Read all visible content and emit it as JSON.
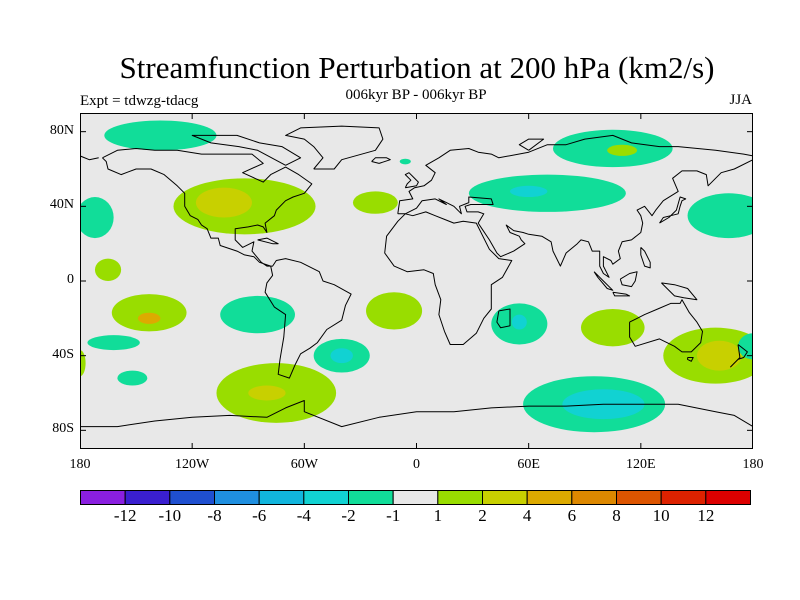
{
  "title": "Streamfunction Perturbation at 200 hPa (km2/s)",
  "subtitle": "006kyr BP - 006kyr BP",
  "experiment": "Expt = tdwzg-tdacg",
  "season": "JJA",
  "colors": {
    "background": "#e8e8e8",
    "coast": "#000000"
  },
  "y_ticks": [
    {
      "label": "80N",
      "lat": 80
    },
    {
      "label": "40N",
      "lat": 40
    },
    {
      "label": "0",
      "lat": 0
    },
    {
      "label": "40S",
      "lat": -40
    },
    {
      "label": "80S",
      "lat": -80
    }
  ],
  "x_ticks": [
    {
      "label": "180",
      "lon": -180
    },
    {
      "label": "120W",
      "lon": -120
    },
    {
      "label": "60W",
      "lon": -60
    },
    {
      "label": "0",
      "lon": 0
    },
    {
      "label": "60E",
      "lon": 60
    },
    {
      "label": "120E",
      "lon": 120
    },
    {
      "label": "180",
      "lon": 180
    }
  ],
  "colorbar": {
    "colors": [
      "#8a1fe0",
      "#3a1fd0",
      "#1f4fd0",
      "#1f8fe0",
      "#11b5dd",
      "#11d2d2",
      "#11dd99",
      "#e8e8e8",
      "#99dd00",
      "#c8d000",
      "#ddaa00",
      "#dd8800",
      "#dd5500",
      "#dd2200",
      "#dd0000"
    ],
    "labels": [
      "-12",
      "-10",
      "-8",
      "-6",
      "-4",
      "-2",
      "-1",
      "1",
      "2",
      "4",
      "6",
      "8",
      "10",
      "12"
    ]
  },
  "anomalies": [
    {
      "lon": -137,
      "lat": 78,
      "rx": 30,
      "ry": 8,
      "color": "#11dd99"
    },
    {
      "lon": -92,
      "lat": 40,
      "rx": 38,
      "ry": 15,
      "color": "#99dd00"
    },
    {
      "lon": -103,
      "lat": 42,
      "rx": 15,
      "ry": 8,
      "color": "#c8d000"
    },
    {
      "lon": -172,
      "lat": 34,
      "rx": 10,
      "ry": 11,
      "color": "#11dd99"
    },
    {
      "lon": -22,
      "lat": 42,
      "rx": 12,
      "ry": 6,
      "color": "#99dd00"
    },
    {
      "lon": -6,
      "lat": 64,
      "rx": 3,
      "ry": 1.5,
      "color": "#11dd99"
    },
    {
      "lon": 105,
      "lat": 71,
      "rx": 32,
      "ry": 10,
      "color": "#11dd99"
    },
    {
      "lon": 110,
      "lat": 70,
      "rx": 8,
      "ry": 3,
      "color": "#99dd00"
    },
    {
      "lon": 70,
      "lat": 47,
      "rx": 42,
      "ry": 10,
      "color": "#11dd99"
    },
    {
      "lon": 60,
      "lat": 48,
      "rx": 10,
      "ry": 3,
      "color": "#11d2d2"
    },
    {
      "lon": 167,
      "lat": 35,
      "rx": 22,
      "ry": 12,
      "color": "#11dd99"
    },
    {
      "lon": -165,
      "lat": 6,
      "rx": 7,
      "ry": 6,
      "color": "#99dd00"
    },
    {
      "lon": -143,
      "lat": -17,
      "rx": 20,
      "ry": 10,
      "color": "#99dd00"
    },
    {
      "lon": -143,
      "lat": -20,
      "rx": 6,
      "ry": 3,
      "color": "#ddaa00"
    },
    {
      "lon": -85,
      "lat": -18,
      "rx": 20,
      "ry": 10,
      "color": "#11dd99"
    },
    {
      "lon": -12,
      "lat": -16,
      "rx": 15,
      "ry": 10,
      "color": "#99dd00"
    },
    {
      "lon": -162,
      "lat": -33,
      "rx": 14,
      "ry": 4,
      "color": "#11dd99"
    },
    {
      "lon": -152,
      "lat": -52,
      "rx": 8,
      "ry": 4,
      "color": "#11dd99"
    },
    {
      "lon": -40,
      "lat": -40,
      "rx": 15,
      "ry": 9,
      "color": "#11dd99"
    },
    {
      "lon": -40,
      "lat": -40,
      "rx": 6,
      "ry": 4,
      "color": "#11d2d2"
    },
    {
      "lon": 55,
      "lat": -23,
      "rx": 15,
      "ry": 11,
      "color": "#11dd99"
    },
    {
      "lon": 55,
      "lat": -22,
      "rx": 4,
      "ry": 4,
      "color": "#11d2d2"
    },
    {
      "lon": 105,
      "lat": -25,
      "rx": 17,
      "ry": 10,
      "color": "#99dd00"
    },
    {
      "lon": -75,
      "lat": -60,
      "rx": 32,
      "ry": 16,
      "color": "#99dd00"
    },
    {
      "lon": -80,
      "lat": -60,
      "rx": 10,
      "ry": 4,
      "color": "#c8d000"
    },
    {
      "lon": -180,
      "lat": -44,
      "rx": 3,
      "ry": 7,
      "color": "#99dd00"
    },
    {
      "lon": 160,
      "lat": -40,
      "rx": 28,
      "ry": 15,
      "color": "#99dd00"
    },
    {
      "lon": 162,
      "lat": -40,
      "rx": 12,
      "ry": 8,
      "color": "#c8d000"
    },
    {
      "lon": 180,
      "lat": -35,
      "rx": 8,
      "ry": 7,
      "color": "#11dd99"
    },
    {
      "lon": 95,
      "lat": -66,
      "rx": 38,
      "ry": 15,
      "color": "#11dd99"
    },
    {
      "lon": 100,
      "lat": -66,
      "rx": 22,
      "ry": 8,
      "color": "#11d2d2"
    }
  ],
  "coastlines": [
    [
      [
        -168,
        66
      ],
      [
        -160,
        70
      ],
      [
        -150,
        71
      ],
      [
        -140,
        70
      ],
      [
        -128,
        70
      ],
      [
        -115,
        68
      ],
      [
        -100,
        68
      ],
      [
        -88,
        68
      ],
      [
        -82,
        63
      ],
      [
        -93,
        58
      ],
      [
        -82,
        53
      ],
      [
        -78,
        57
      ],
      [
        -70,
        61
      ],
      [
        -63,
        57
      ],
      [
        -56,
        52
      ],
      [
        -60,
        47
      ],
      [
        -66,
        45
      ],
      [
        -70,
        43
      ],
      [
        -75,
        38
      ],
      [
        -76,
        35
      ],
      [
        -81,
        31
      ],
      [
        -80,
        26
      ],
      [
        -82,
        29
      ],
      [
        -85,
        30
      ],
      [
        -90,
        29
      ],
      [
        -97,
        28
      ],
      [
        -97,
        22
      ],
      [
        -93,
        18
      ],
      [
        -87,
        21
      ],
      [
        -88,
        16
      ],
      [
        -83,
        10
      ],
      [
        -80,
        8
      ],
      [
        -77,
        8
      ],
      [
        -75,
        11
      ],
      [
        -70,
        12
      ],
      [
        -62,
        10
      ],
      [
        -52,
        5
      ],
      [
        -50,
        0
      ],
      [
        -44,
        -2
      ],
      [
        -35,
        -7
      ],
      [
        -38,
        -13
      ],
      [
        -40,
        -21
      ],
      [
        -48,
        -26
      ],
      [
        -53,
        -33
      ],
      [
        -57,
        -36
      ],
      [
        -62,
        -39
      ],
      [
        -65,
        -45
      ],
      [
        -68,
        -52
      ],
      [
        -74,
        -50
      ],
      [
        -73,
        -42
      ],
      [
        -71,
        -30
      ],
      [
        -70,
        -18
      ],
      [
        -76,
        -14
      ],
      [
        -81,
        -6
      ],
      [
        -80,
        -1
      ],
      [
        -77,
        3
      ],
      [
        -78,
        8
      ],
      [
        -84,
        10
      ],
      [
        -87,
        13
      ],
      [
        -92,
        14
      ],
      [
        -96,
        16
      ],
      [
        -105,
        19
      ],
      [
        -106,
        23
      ],
      [
        -110,
        23
      ],
      [
        -112,
        28
      ],
      [
        -115,
        30
      ],
      [
        -117,
        33
      ],
      [
        -121,
        35
      ],
      [
        -124,
        40
      ],
      [
        -124,
        47
      ],
      [
        -128,
        51
      ],
      [
        -135,
        57
      ],
      [
        -142,
        60
      ],
      [
        -150,
        60
      ],
      [
        -158,
        57
      ],
      [
        -165,
        60
      ],
      [
        -166,
        64
      ],
      [
        -168,
        66
      ]
    ],
    [
      [
        -70,
        62
      ],
      [
        -62,
        66
      ],
      [
        -72,
        72
      ],
      [
        -84,
        74
      ],
      [
        -96,
        78
      ],
      [
        -120,
        78
      ],
      [
        -110,
        74
      ],
      [
        -95,
        72
      ],
      [
        -85,
        70
      ],
      [
        -70,
        62
      ]
    ],
    [
      [
        -55,
        60
      ],
      [
        -44,
        60
      ],
      [
        -40,
        65
      ],
      [
        -22,
        70
      ],
      [
        -18,
        76
      ],
      [
        -20,
        82
      ],
      [
        -40,
        83
      ],
      [
        -62,
        82
      ],
      [
        -70,
        78
      ],
      [
        -60,
        76
      ],
      [
        -55,
        72
      ],
      [
        -50,
        66
      ],
      [
        -55,
        60
      ]
    ],
    [
      [
        -24,
        64
      ],
      [
        -22,
        66
      ],
      [
        -16,
        66
      ],
      [
        -14,
        65
      ],
      [
        -20,
        63
      ],
      [
        -24,
        64
      ]
    ],
    [
      [
        -10,
        36
      ],
      [
        -9,
        43
      ],
      [
        -2,
        44
      ],
      [
        -4,
        48
      ],
      [
        -1,
        50
      ],
      [
        4,
        51
      ],
      [
        8,
        54
      ],
      [
        10,
        58
      ],
      [
        5,
        62
      ],
      [
        12,
        66
      ],
      [
        18,
        70
      ],
      [
        28,
        71
      ],
      [
        33,
        69
      ],
      [
        40,
        68
      ],
      [
        44,
        66
      ],
      [
        60,
        69
      ],
      [
        70,
        73
      ],
      [
        80,
        73
      ],
      [
        90,
        76
      ],
      [
        105,
        78
      ],
      [
        115,
        74
      ],
      [
        130,
        72
      ],
      [
        140,
        72
      ],
      [
        160,
        70
      ],
      [
        175,
        68
      ],
      [
        180,
        67
      ]
    ],
    [
      [
        -180,
        67
      ],
      [
        -175,
        65
      ],
      [
        -170,
        66
      ]
    ],
    [
      [
        180,
        65
      ],
      [
        170,
        60
      ],
      [
        163,
        58
      ],
      [
        156,
        51
      ],
      [
        155,
        57
      ],
      [
        150,
        59
      ],
      [
        142,
        59
      ],
      [
        137,
        55
      ],
      [
        140,
        48
      ],
      [
        132,
        43
      ],
      [
        128,
        38
      ],
      [
        126,
        35
      ],
      [
        122,
        40
      ],
      [
        118,
        38
      ],
      [
        120,
        35
      ],
      [
        121,
        31
      ],
      [
        120,
        26
      ],
      [
        115,
        22
      ],
      [
        110,
        21
      ],
      [
        108,
        16
      ],
      [
        109,
        12
      ],
      [
        105,
        9
      ],
      [
        104,
        11
      ],
      [
        100,
        13
      ],
      [
        100,
        8
      ],
      [
        103,
        2
      ],
      [
        100,
        4
      ],
      [
        98,
        8
      ],
      [
        98,
        16
      ],
      [
        94,
        16
      ],
      [
        92,
        21
      ],
      [
        88,
        22
      ],
      [
        86,
        20
      ],
      [
        80,
        15
      ],
      [
        77,
        8
      ],
      [
        73,
        16
      ],
      [
        72,
        21
      ],
      [
        67,
        24
      ],
      [
        60,
        25
      ],
      [
        57,
        26
      ],
      [
        52,
        27
      ],
      [
        48,
        30
      ],
      [
        50,
        26
      ],
      [
        55,
        24
      ],
      [
        56,
        22
      ],
      [
        58,
        20
      ],
      [
        52,
        16
      ],
      [
        45,
        13
      ],
      [
        43,
        15
      ],
      [
        39,
        22
      ],
      [
        35,
        28
      ],
      [
        33,
        31
      ],
      [
        36,
        36
      ],
      [
        33,
        37
      ],
      [
        27,
        37
      ],
      [
        26,
        40
      ],
      [
        29,
        41
      ],
      [
        41,
        41
      ],
      [
        40,
        44
      ],
      [
        28,
        45
      ],
      [
        28,
        42
      ],
      [
        23,
        40
      ],
      [
        24,
        36
      ],
      [
        20,
        40
      ],
      [
        16,
        42
      ],
      [
        12,
        44
      ],
      [
        16,
        41
      ],
      [
        10,
        44
      ],
      [
        3,
        43
      ],
      [
        0,
        39
      ],
      [
        -6,
        36
      ],
      [
        -10,
        36
      ]
    ],
    [
      [
        -6,
        36
      ],
      [
        -10,
        32
      ],
      [
        -16,
        24
      ],
      [
        -17,
        15
      ],
      [
        -12,
        8
      ],
      [
        -5,
        5
      ],
      [
        4,
        6
      ],
      [
        9,
        4
      ],
      [
        10,
        -2
      ],
      [
        13,
        -10
      ],
      [
        12,
        -18
      ],
      [
        15,
        -27
      ],
      [
        18,
        -34
      ],
      [
        25,
        -34
      ],
      [
        32,
        -28
      ],
      [
        36,
        -20
      ],
      [
        40,
        -15
      ],
      [
        40,
        -8
      ],
      [
        40,
        -2
      ],
      [
        46,
        2
      ],
      [
        51,
        11
      ],
      [
        44,
        12
      ],
      [
        39,
        17
      ],
      [
        35,
        25
      ],
      [
        32,
        31
      ],
      [
        25,
        32
      ],
      [
        20,
        31
      ],
      [
        15,
        33
      ],
      [
        10,
        35
      ],
      [
        5,
        37
      ],
      [
        -2,
        35
      ],
      [
        -6,
        36
      ]
    ],
    [
      [
        44,
        -16
      ],
      [
        50,
        -15
      ],
      [
        50,
        -24
      ],
      [
        45,
        -25
      ],
      [
        43,
        -22
      ],
      [
        44,
        -16
      ]
    ],
    [
      [
        114,
        -22
      ],
      [
        122,
        -18
      ],
      [
        129,
        -15
      ],
      [
        136,
        -12
      ],
      [
        141,
        -12
      ],
      [
        142,
        -10
      ],
      [
        146,
        -17
      ],
      [
        150,
        -22
      ],
      [
        153,
        -27
      ],
      [
        152,
        -33
      ],
      [
        147,
        -38
      ],
      [
        142,
        -38
      ],
      [
        138,
        -35
      ],
      [
        130,
        -31
      ],
      [
        117,
        -35
      ],
      [
        114,
        -30
      ],
      [
        114,
        -22
      ]
    ],
    [
      [
        145,
        -41
      ],
      [
        148,
        -41
      ],
      [
        147,
        -43
      ],
      [
        145,
        -42
      ],
      [
        145,
        -41
      ]
    ],
    [
      [
        172,
        -34
      ],
      [
        177,
        -38
      ],
      [
        175,
        -41
      ],
      [
        172,
        -42
      ],
      [
        168,
        -46
      ],
      [
        170,
        -44
      ],
      [
        173,
        -41
      ],
      [
        172,
        -34
      ]
    ],
    [
      [
        95,
        5
      ],
      [
        100,
        0
      ],
      [
        105,
        -5
      ],
      [
        102,
        -4
      ],
      [
        97,
        2
      ],
      [
        95,
        5
      ]
    ],
    [
      [
        105,
        -6
      ],
      [
        112,
        -7
      ],
      [
        114,
        -8
      ],
      [
        106,
        -8
      ],
      [
        105,
        -6
      ]
    ],
    [
      [
        109,
        1
      ],
      [
        114,
        4
      ],
      [
        118,
        5
      ],
      [
        117,
        0
      ],
      [
        115,
        -3
      ],
      [
        110,
        -2
      ],
      [
        109,
        1
      ]
    ],
    [
      [
        131,
        -1
      ],
      [
        138,
        -2
      ],
      [
        145,
        -4
      ],
      [
        150,
        -10
      ],
      [
        143,
        -9
      ],
      [
        138,
        -8
      ],
      [
        131,
        -1
      ]
    ],
    [
      [
        120,
        18
      ],
      [
        122,
        16
      ],
      [
        125,
        10
      ],
      [
        125,
        7
      ],
      [
        122,
        8
      ],
      [
        120,
        14
      ],
      [
        120,
        18
      ]
    ],
    [
      [
        130,
        31
      ],
      [
        132,
        34
      ],
      [
        136,
        35
      ],
      [
        140,
        36
      ],
      [
        141,
        40
      ],
      [
        142,
        43
      ],
      [
        144,
        44
      ],
      [
        141,
        45
      ],
      [
        139,
        38
      ],
      [
        135,
        34
      ],
      [
        130,
        31
      ]
    ],
    [
      [
        -6,
        50
      ],
      [
        0,
        51
      ],
      [
        1,
        53
      ],
      [
        -2,
        56
      ],
      [
        -4,
        58
      ],
      [
        -6,
        57
      ],
      [
        -3,
        54
      ],
      [
        -5,
        52
      ],
      [
        -6,
        50
      ]
    ],
    [
      [
        -85,
        22
      ],
      [
        -80,
        23
      ],
      [
        -74,
        20
      ],
      [
        -77,
        20
      ],
      [
        -85,
        22
      ]
    ],
    [
      [
        60,
        70
      ],
      [
        68,
        76
      ],
      [
        60,
        76
      ],
      [
        55,
        73
      ],
      [
        60,
        70
      ]
    ],
    [
      [
        -180,
        -78
      ],
      [
        -160,
        -78
      ],
      [
        -140,
        -75
      ],
      [
        -120,
        -73
      ],
      [
        -100,
        -72
      ],
      [
        -80,
        -73
      ],
      [
        -70,
        -68
      ],
      [
        -60,
        -64
      ],
      [
        -60,
        -70
      ],
      [
        -40,
        -78
      ],
      [
        -20,
        -73
      ],
      [
        0,
        -70
      ],
      [
        20,
        -70
      ],
      [
        40,
        -68
      ],
      [
        60,
        -67
      ],
      [
        80,
        -67
      ],
      [
        100,
        -66
      ],
      [
        120,
        -66
      ],
      [
        140,
        -66
      ],
      [
        160,
        -70
      ],
      [
        170,
        -72
      ],
      [
        180,
        -78
      ]
    ]
  ]
}
